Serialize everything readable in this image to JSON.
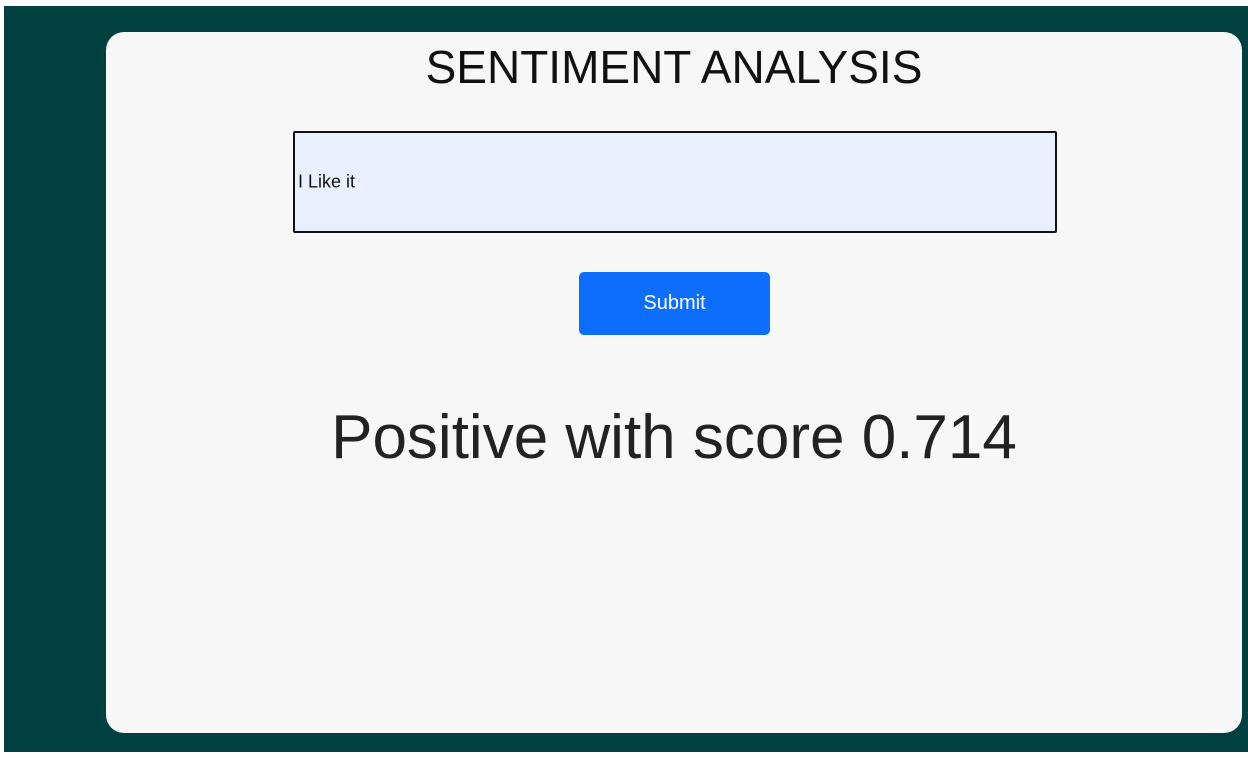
{
  "header": {
    "title": "SENTIMENT ANALYSIS"
  },
  "form": {
    "input_text": "I Like it",
    "button": "Submit"
  },
  "result": {
    "text": "Positive with score 0.714"
  }
}
